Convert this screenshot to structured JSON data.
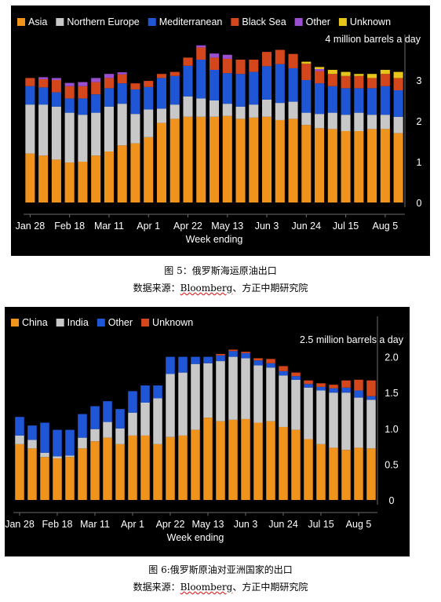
{
  "charts": [
    {
      "caption": "图 5：俄罗斯海运原油出口",
      "source_prefix": "数据来源：",
      "source_brand": "Bloomberg",
      "source_suffix": "、方正中期研究院",
      "unit_label": "4 million barrels a day",
      "xlabel": "Week ending",
      "legend": [
        {
          "name": "Asia",
          "color": "#f0931d"
        },
        {
          "name": "Northern Europe",
          "color": "#c8c8c8"
        },
        {
          "name": "Mediterranean",
          "color": "#1f56d6"
        },
        {
          "name": "Black Sea",
          "color": "#d4461c"
        },
        {
          "name": "Other",
          "color": "#9a4fd0"
        },
        {
          "name": "Unknown",
          "color": "#e8c51a"
        }
      ],
      "yticks": [
        "0",
        "1",
        "2",
        "3"
      ]
    },
    {
      "caption": "图 6:俄罗斯原油对亚洲国家的出口",
      "source_prefix": "数据来源：",
      "source_brand": "Bloomberg",
      "source_suffix": "、方正中期研究院",
      "unit_label": "2.5 million barrels a day",
      "xlabel": "Week ending",
      "legend": [
        {
          "name": "China",
          "color": "#f0931d"
        },
        {
          "name": "India",
          "color": "#c8c8c8"
        },
        {
          "name": "Other",
          "color": "#1f56d6"
        },
        {
          "name": "Unknown",
          "color": "#d4461c"
        }
      ],
      "yticks": [
        "0",
        "0.5",
        "1.0",
        "1.5",
        "2.0"
      ]
    }
  ],
  "chart_data": [
    {
      "type": "bar",
      "stacked": true,
      "title": "",
      "unit": "million barrels a day",
      "xlabel": "Week ending",
      "ylabel": "",
      "ylim": [
        0,
        4
      ],
      "yticks": [
        0,
        1,
        2,
        3
      ],
      "x_tick_labels": [
        "Jan 28",
        "Feb 18",
        "Mar 11",
        "Apr 1",
        "Apr 22",
        "May 13",
        "Jun 3",
        "Jun 24",
        "Jul 15",
        "Aug 5"
      ],
      "x_tick_every": 3,
      "categories": [
        "Jan 28",
        "Feb 4",
        "Feb 11",
        "Feb 18",
        "Feb 25",
        "Mar 4",
        "Mar 11",
        "Mar 18",
        "Mar 25",
        "Apr 1",
        "Apr 8",
        "Apr 15",
        "Apr 22",
        "Apr 29",
        "May 6",
        "May 13",
        "May 20",
        "May 27",
        "Jun 3",
        "Jun 10",
        "Jun 17",
        "Jun 24",
        "Jul 1",
        "Jul 8",
        "Jul 15",
        "Jul 22",
        "Jul 29",
        "Aug 5",
        "Aug 12"
      ],
      "series": [
        {
          "name": "Asia",
          "values": [
            1.2,
            1.15,
            1.05,
            0.98,
            1.0,
            1.15,
            1.25,
            1.4,
            1.45,
            1.6,
            1.95,
            2.05,
            2.1,
            2.1,
            2.1,
            2.12,
            2.05,
            2.08,
            2.1,
            2.02,
            2.05,
            1.9,
            1.82,
            1.8,
            1.75,
            1.75,
            1.8,
            1.8,
            1.7
          ]
        },
        {
          "name": "Northern Europe",
          "values": [
            1.2,
            1.25,
            1.3,
            1.22,
            1.15,
            1.05,
            1.1,
            1.02,
            0.72,
            0.68,
            0.35,
            0.35,
            0.5,
            0.45,
            0.4,
            0.3,
            0.3,
            0.32,
            0.42,
            0.42,
            0.42,
            0.3,
            0.35,
            0.4,
            0.4,
            0.45,
            0.35,
            0.35,
            0.4
          ]
        },
        {
          "name": "Mediterranean",
          "values": [
            0.45,
            0.42,
            0.35,
            0.35,
            0.4,
            0.45,
            0.45,
            0.5,
            0.6,
            0.55,
            0.75,
            0.7,
            0.75,
            0.95,
            0.75,
            0.75,
            0.8,
            0.8,
            0.82,
            0.95,
            0.82,
            0.8,
            0.75,
            0.65,
            0.65,
            0.6,
            0.65,
            0.7,
            0.65
          ]
        },
        {
          "name": "Black Sea",
          "values": [
            0.2,
            0.2,
            0.3,
            0.3,
            0.3,
            0.3,
            0.25,
            0.22,
            0.15,
            0.15,
            0.1,
            0.1,
            0.2,
            0.3,
            0.3,
            0.35,
            0.35,
            0.3,
            0.35,
            0.35,
            0.35,
            0.4,
            0.3,
            0.3,
            0.3,
            0.3,
            0.25,
            0.3,
            0.3
          ]
        },
        {
          "name": "Other",
          "values": [
            0,
            0.05,
            0.05,
            0.08,
            0.1,
            0.1,
            0.1,
            0.05,
            0,
            0,
            0,
            0,
            0,
            0.05,
            0.1,
            0.1,
            0,
            0,
            0,
            0,
            0,
            0,
            0.05,
            0,
            0,
            0,
            0,
            0,
            0
          ]
        },
        {
          "name": "Unknown",
          "values": [
            0,
            0,
            0,
            0,
            0,
            0,
            0,
            0,
            0,
            0,
            0,
            0,
            0,
            0,
            0,
            0,
            0,
            0,
            0,
            0,
            0,
            0.05,
            0.05,
            0.1,
            0.1,
            0.05,
            0.1,
            0.1,
            0.15
          ]
        }
      ],
      "legend_position": "top-left",
      "grid": false
    },
    {
      "type": "bar",
      "stacked": true,
      "title": "",
      "unit": "million barrels a day",
      "xlabel": "Week ending",
      "ylabel": "",
      "ylim": [
        0,
        2.5
      ],
      "yticks": [
        0,
        0.5,
        1.0,
        1.5,
        2.0
      ],
      "x_tick_labels": [
        "Jan 28",
        "Feb 18",
        "Mar 11",
        "Apr 1",
        "Apr 22",
        "May 13",
        "Jun 3",
        "Jun 24",
        "Jul 15",
        "Aug 5"
      ],
      "x_tick_every": 3,
      "categories": [
        "Jan 28",
        "Feb 4",
        "Feb 11",
        "Feb 18",
        "Feb 25",
        "Mar 4",
        "Mar 11",
        "Mar 18",
        "Mar 25",
        "Apr 1",
        "Apr 8",
        "Apr 15",
        "Apr 22",
        "Apr 29",
        "May 6",
        "May 13",
        "May 20",
        "May 27",
        "Jun 3",
        "Jun 10",
        "Jun 17",
        "Jun 24",
        "Jul 1",
        "Jul 8",
        "Jul 15",
        "Jul 22",
        "Jul 29",
        "Aug 5",
        "Aug 12"
      ],
      "series": [
        {
          "name": "China",
          "values": [
            0.78,
            0.72,
            0.6,
            0.58,
            0.6,
            0.72,
            0.82,
            0.87,
            0.78,
            0.9,
            0.9,
            0.78,
            0.88,
            0.9,
            0.98,
            1.15,
            1.1,
            1.12,
            1.13,
            1.08,
            1.1,
            1.02,
            0.98,
            0.85,
            0.78,
            0.73,
            0.7,
            0.73,
            0.72
          ]
        },
        {
          "name": "India",
          "values": [
            0.12,
            0.12,
            0.06,
            0.03,
            0.02,
            0.15,
            0.17,
            0.22,
            0.22,
            0.32,
            0.46,
            0.64,
            0.88,
            0.88,
            0.92,
            0.76,
            0.84,
            0.88,
            0.85,
            0.8,
            0.75,
            0.72,
            0.7,
            0.72,
            0.75,
            0.77,
            0.8,
            0.7,
            0.68
          ]
        },
        {
          "name": "Other",
          "values": [
            0.26,
            0.2,
            0.42,
            0.37,
            0.36,
            0.33,
            0.32,
            0.29,
            0.27,
            0.3,
            0.24,
            0.18,
            0.24,
            0.22,
            0.1,
            0.09,
            0.08,
            0.08,
            0.07,
            0.07,
            0.06,
            0.06,
            0.05,
            0.05,
            0.05,
            0.06,
            0.07,
            0.1,
            0.05
          ]
        },
        {
          "name": "Unknown",
          "values": [
            0,
            0,
            0,
            0,
            0,
            0,
            0,
            0,
            0,
            0,
            0,
            0,
            0,
            0,
            0,
            0,
            0.02,
            0.02,
            0.02,
            0.03,
            0.06,
            0.07,
            0.05,
            0.05,
            0.05,
            0.05,
            0.1,
            0.15,
            0.22
          ]
        }
      ],
      "legend_position": "top-left",
      "grid": false
    }
  ]
}
